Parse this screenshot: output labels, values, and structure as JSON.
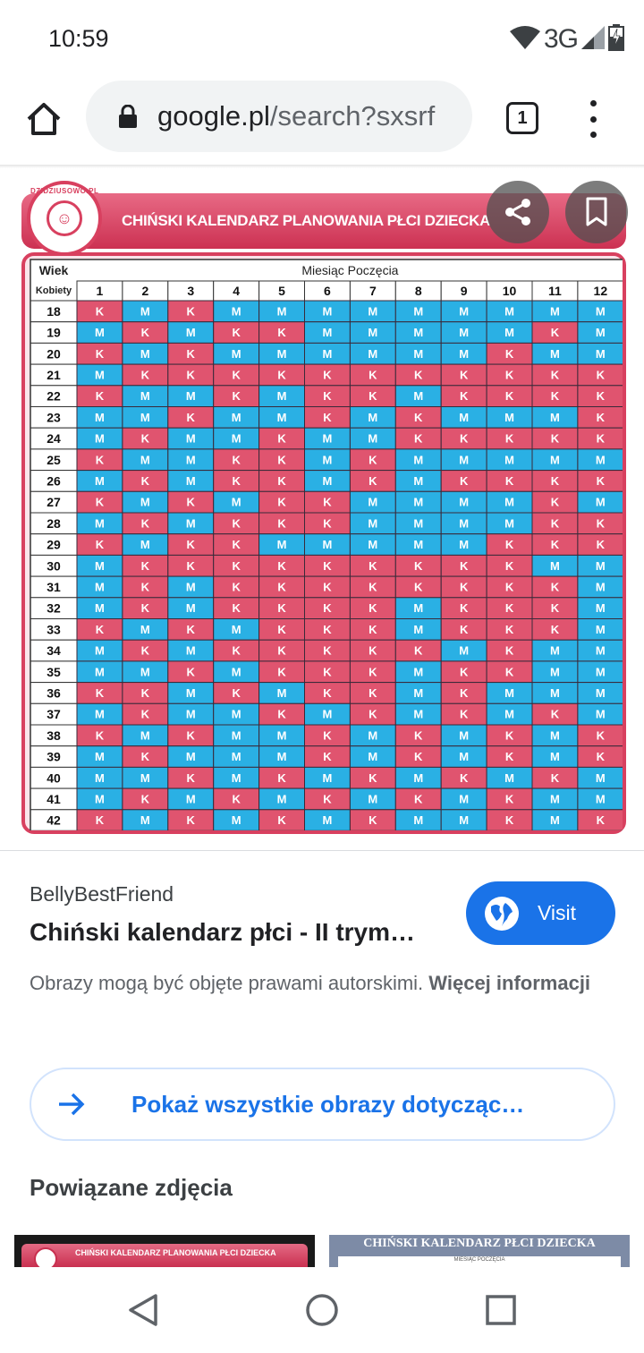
{
  "status_bar": {
    "time": "10:59",
    "network_label": "3G",
    "icons": [
      "wifi-icon",
      "signal-icon",
      "battery-charging-icon"
    ]
  },
  "browser": {
    "url_host": "google.pl",
    "url_path": "/search?sxsrf",
    "tab_count": "1",
    "icons": [
      "home-icon",
      "lock-icon",
      "tabs-icon",
      "more-vert-icon"
    ]
  },
  "image": {
    "title": "CHIŃSKI KALENDARZ PLANOWANIA PŁCI DZIECKA",
    "logo_text": "DZIDZIUSOWO.PL",
    "table": {
      "age_header": "Wiek",
      "age_subheader": "Kobiety",
      "month_header": "Miesiąc Poczęcia",
      "months": [
        "1",
        "2",
        "3",
        "4",
        "5",
        "6",
        "7",
        "8",
        "9",
        "10",
        "11",
        "12"
      ],
      "ages": [
        "18",
        "19",
        "20",
        "21",
        "22",
        "23",
        "24",
        "25",
        "26",
        "27",
        "28",
        "29",
        "30",
        "31",
        "32",
        "33",
        "34",
        "35",
        "36",
        "37",
        "38",
        "39",
        "40",
        "41",
        "42"
      ],
      "rows": [
        [
          "K",
          "M",
          "K",
          "M",
          "M",
          "M",
          "M",
          "M",
          "M",
          "M",
          "M",
          "M"
        ],
        [
          "M",
          "K",
          "M",
          "K",
          "K",
          "M",
          "M",
          "M",
          "M",
          "M",
          "K",
          "M"
        ],
        [
          "K",
          "M",
          "K",
          "M",
          "M",
          "M",
          "M",
          "M",
          "M",
          "K",
          "M",
          "M"
        ],
        [
          "M",
          "K",
          "K",
          "K",
          "K",
          "K",
          "K",
          "K",
          "K",
          "K",
          "K",
          "K"
        ],
        [
          "K",
          "M",
          "M",
          "K",
          "M",
          "K",
          "K",
          "M",
          "K",
          "K",
          "K",
          "K"
        ],
        [
          "M",
          "M",
          "K",
          "M",
          "M",
          "K",
          "M",
          "K",
          "M",
          "M",
          "M",
          "K"
        ],
        [
          "M",
          "K",
          "M",
          "M",
          "K",
          "M",
          "M",
          "K",
          "K",
          "K",
          "K",
          "K"
        ],
        [
          "K",
          "M",
          "M",
          "K",
          "K",
          "M",
          "K",
          "M",
          "M",
          "M",
          "M",
          "M"
        ],
        [
          "M",
          "K",
          "M",
          "K",
          "K",
          "M",
          "K",
          "M",
          "K",
          "K",
          "K",
          "K"
        ],
        [
          "K",
          "M",
          "K",
          "M",
          "K",
          "K",
          "M",
          "M",
          "M",
          "M",
          "K",
          "M"
        ],
        [
          "M",
          "K",
          "M",
          "K",
          "K",
          "K",
          "M",
          "M",
          "M",
          "M",
          "K",
          "K"
        ],
        [
          "K",
          "M",
          "K",
          "K",
          "M",
          "M",
          "M",
          "M",
          "M",
          "K",
          "K",
          "K"
        ],
        [
          "M",
          "K",
          "K",
          "K",
          "K",
          "K",
          "K",
          "K",
          "K",
          "K",
          "M",
          "M"
        ],
        [
          "M",
          "K",
          "M",
          "K",
          "K",
          "K",
          "K",
          "K",
          "K",
          "K",
          "K",
          "M"
        ],
        [
          "M",
          "K",
          "M",
          "K",
          "K",
          "K",
          "K",
          "M",
          "K",
          "K",
          "K",
          "M"
        ],
        [
          "K",
          "M",
          "K",
          "M",
          "K",
          "K",
          "K",
          "M",
          "K",
          "K",
          "K",
          "M"
        ],
        [
          "M",
          "K",
          "M",
          "K",
          "K",
          "K",
          "K",
          "K",
          "M",
          "K",
          "M",
          "M"
        ],
        [
          "M",
          "M",
          "K",
          "M",
          "K",
          "K",
          "K",
          "M",
          "K",
          "K",
          "M",
          "M"
        ],
        [
          "K",
          "K",
          "M",
          "K",
          "M",
          "K",
          "K",
          "M",
          "K",
          "M",
          "M",
          "M"
        ],
        [
          "M",
          "K",
          "M",
          "M",
          "K",
          "M",
          "K",
          "M",
          "K",
          "M",
          "K",
          "M"
        ],
        [
          "K",
          "M",
          "K",
          "M",
          "M",
          "K",
          "M",
          "K",
          "M",
          "K",
          "M",
          "K"
        ],
        [
          "M",
          "K",
          "M",
          "M",
          "M",
          "K",
          "M",
          "K",
          "M",
          "K",
          "M",
          "K"
        ],
        [
          "M",
          "M",
          "K",
          "M",
          "K",
          "M",
          "K",
          "M",
          "K",
          "M",
          "K",
          "M"
        ],
        [
          "M",
          "K",
          "M",
          "K",
          "M",
          "K",
          "M",
          "K",
          "M",
          "K",
          "M",
          "M"
        ],
        [
          "K",
          "M",
          "K",
          "M",
          "K",
          "M",
          "K",
          "M",
          "M",
          "K",
          "M",
          "K"
        ]
      ]
    },
    "colors": {
      "K": "#e0546f",
      "M": "#2ab0e4",
      "brand": "#d8405f"
    },
    "actions": [
      "share-icon",
      "bookmark-icon"
    ]
  },
  "result": {
    "source": "BellyBestFriend",
    "title": "Chiński kalendarz płci - II trym…",
    "visit_label": "Visit",
    "copyright_text": "Obrazy mogą być objęte prawami autorskimi. ",
    "more_info": "Więcej informacji",
    "show_all": "Pokaż wszystkie obrazy dotycząc…",
    "related_title": "Powiązane zdjęcia"
  },
  "related": [
    {
      "title": "CHIŃSKI KALENDARZ PLANOWANIA PŁCI DZIECKA"
    },
    {
      "title": "CHIŃSKI KALENDARZ PŁCI DZIECKA",
      "subtitle": "MIESIĄC POCZĘCIA"
    }
  ],
  "nav": [
    "back-icon",
    "home-circle-icon",
    "recents-icon"
  ]
}
